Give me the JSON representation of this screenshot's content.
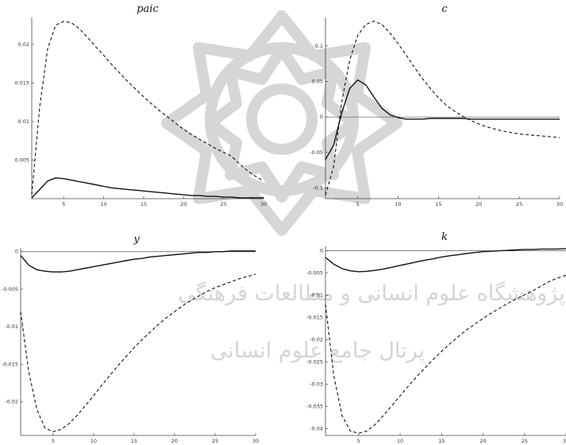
{
  "watermark": {
    "line1": "پژوهشگاه علوم انسانی و مطالعات فرهنگی",
    "line2": "پرتال جامع علوم انسانی"
  },
  "chart_data": [
    {
      "type": "line",
      "title": "paic",
      "xlim": [
        1,
        30
      ],
      "ylim": [
        0,
        0.0235
      ],
      "xticks": [
        5,
        10,
        15,
        20,
        25,
        30
      ],
      "yticks": [
        0.005,
        0.01,
        0.015,
        0.02
      ],
      "ytick_labels": [
        "0.005",
        "0.01",
        "0.015",
        "0.02"
      ],
      "zero_line": false,
      "x": [
        1,
        2,
        3,
        4,
        5,
        6,
        7,
        8,
        9,
        10,
        11,
        12,
        13,
        14,
        15,
        16,
        17,
        18,
        19,
        20,
        21,
        22,
        23,
        24,
        25,
        26,
        27,
        28,
        29,
        30
      ],
      "series": [
        {
          "style": "solid",
          "values": [
            0.0001,
            0.0012,
            0.0023,
            0.0027,
            0.0026,
            0.0024,
            0.0022,
            0.002,
            0.0018,
            0.0016,
            0.0014,
            0.0013,
            0.0012,
            0.0011,
            0.001,
            0.0009,
            0.0008,
            0.0007,
            0.0006,
            0.0005,
            0.0004,
            0.0004,
            0.0003,
            0.0003,
            0.0002,
            0.0002,
            0.0001,
            0.0001,
            0.0001,
            0.0001
          ]
        },
        {
          "style": "dashed",
          "values": [
            0.0005,
            0.012,
            0.0195,
            0.0225,
            0.023,
            0.0228,
            0.022,
            0.0209,
            0.0197,
            0.0186,
            0.0174,
            0.0163,
            0.0152,
            0.0142,
            0.0132,
            0.0123,
            0.0114,
            0.0106,
            0.0098,
            0.009,
            0.0083,
            0.0077,
            0.0071,
            0.0065,
            0.006,
            0.0055,
            0.0045,
            0.0036,
            0.0029,
            0.0023
          ]
        }
      ]
    },
    {
      "type": "line",
      "title": "c",
      "xlim": [
        1,
        30
      ],
      "ylim": [
        -0.115,
        0.14
      ],
      "xticks": [
        5,
        10,
        15,
        20,
        25,
        30
      ],
      "yticks": [
        -0.1,
        -0.05,
        0,
        0.05,
        0.1
      ],
      "ytick_labels": [
        "-0.1",
        "-0.05",
        "0",
        "0.05",
        "0.1"
      ],
      "zero_line": true,
      "x": [
        1,
        2,
        3,
        4,
        5,
        6,
        7,
        8,
        9,
        10,
        11,
        12,
        13,
        14,
        15,
        16,
        17,
        18,
        19,
        20,
        21,
        22,
        23,
        24,
        25,
        26,
        27,
        28,
        29,
        30
      ],
      "series": [
        {
          "style": "solid",
          "values": [
            -0.06,
            -0.04,
            0.005,
            0.04,
            0.052,
            0.045,
            0.028,
            0.012,
            0.003,
            -0.001,
            -0.003,
            -0.003,
            -0.003,
            -0.002,
            -0.002,
            -0.002,
            -0.002,
            -0.002,
            -0.003,
            -0.003,
            -0.003,
            -0.003,
            -0.003,
            -0.003,
            -0.003,
            -0.003,
            -0.003,
            -0.003,
            -0.003,
            -0.003
          ]
        },
        {
          "style": "dashed",
          "values": [
            -0.11,
            -0.07,
            0.02,
            0.08,
            0.115,
            0.13,
            0.135,
            0.13,
            0.118,
            0.103,
            0.087,
            0.07,
            0.054,
            0.04,
            0.027,
            0.016,
            0.008,
            0.001,
            -0.005,
            -0.01,
            -0.014,
            -0.017,
            -0.02,
            -0.022,
            -0.024,
            -0.025,
            -0.026,
            -0.027,
            -0.028,
            -0.029
          ]
        }
      ]
    },
    {
      "type": "line",
      "title": "y",
      "xlim": [
        1,
        30
      ],
      "ylim": [
        -0.0245,
        0.0005
      ],
      "xticks": [
        5,
        10,
        15,
        20,
        25,
        30
      ],
      "yticks": [
        -0.02,
        -0.015,
        -0.01,
        -0.005,
        0
      ],
      "ytick_labels": [
        "-0.02",
        "-0.015",
        "-0.01",
        "-0.005",
        "0"
      ],
      "zero_line": true,
      "x": [
        1,
        2,
        3,
        4,
        5,
        6,
        7,
        8,
        9,
        10,
        11,
        12,
        13,
        14,
        15,
        16,
        17,
        18,
        19,
        20,
        21,
        22,
        23,
        24,
        25,
        26,
        27,
        28,
        29,
        30
      ],
      "series": [
        {
          "style": "solid",
          "values": [
            -0.0005,
            -0.0018,
            -0.0024,
            -0.0026,
            -0.0027,
            -0.0027,
            -0.0026,
            -0.0024,
            -0.0022,
            -0.002,
            -0.0018,
            -0.0016,
            -0.0014,
            -0.0012,
            -0.001,
            -0.0009,
            -0.0007,
            -0.0006,
            -0.0005,
            -0.0004,
            -0.0003,
            -0.0002,
            -0.0001,
            -0.0001,
            0.0,
            0.0,
            0.0001,
            0.0001,
            0.0001,
            0.0001
          ]
        },
        {
          "style": "dashed",
          "values": [
            -0.008,
            -0.016,
            -0.021,
            -0.0235,
            -0.024,
            -0.0237,
            -0.0229,
            -0.0218,
            -0.0205,
            -0.0192,
            -0.0178,
            -0.0165,
            -0.0152,
            -0.014,
            -0.0128,
            -0.0117,
            -0.0107,
            -0.0097,
            -0.0088,
            -0.008,
            -0.0072,
            -0.0065,
            -0.0059,
            -0.0053,
            -0.0048,
            -0.0044,
            -0.004,
            -0.0036,
            -0.0033,
            -0.003
          ]
        }
      ]
    },
    {
      "type": "line",
      "title": "k",
      "xlim": [
        1,
        30
      ],
      "ylim": [
        -0.0415,
        0.001
      ],
      "xticks": [
        5,
        10,
        15,
        20,
        25,
        30
      ],
      "yticks": [
        -0.04,
        -0.035,
        -0.03,
        -0.025,
        -0.02,
        -0.015,
        -0.01,
        -0.005,
        0
      ],
      "ytick_labels": [
        "-0.04",
        "-0.035",
        "-0.03",
        "-0.025",
        "-0.02",
        "-0.015",
        "-0.01",
        "-0.005",
        "0"
      ],
      "zero_line": true,
      "x": [
        1,
        2,
        3,
        4,
        5,
        6,
        7,
        8,
        9,
        10,
        11,
        12,
        13,
        14,
        15,
        16,
        17,
        18,
        19,
        20,
        21,
        22,
        23,
        24,
        25,
        26,
        27,
        28,
        29,
        30
      ],
      "series": [
        {
          "style": "solid",
          "values": [
            -0.0015,
            -0.003,
            -0.004,
            -0.0045,
            -0.0047,
            -0.0046,
            -0.0044,
            -0.0041,
            -0.0037,
            -0.0033,
            -0.0029,
            -0.0025,
            -0.0021,
            -0.0018,
            -0.0014,
            -0.0011,
            -0.0009,
            -0.0006,
            -0.0004,
            -0.0002,
            -0.0001,
            0.0,
            0.0001,
            0.0002,
            0.0003,
            0.0003,
            0.0004,
            0.0004,
            0.0004,
            0.0005
          ]
        },
        {
          "style": "dashed",
          "values": [
            -0.012,
            -0.028,
            -0.037,
            -0.0405,
            -0.041,
            -0.0405,
            -0.039,
            -0.037,
            -0.0348,
            -0.0326,
            -0.0304,
            -0.0283,
            -0.0263,
            -0.0244,
            -0.0226,
            -0.0209,
            -0.0193,
            -0.0178,
            -0.0165,
            -0.0152,
            -0.014,
            -0.0129,
            -0.0118,
            -0.0108,
            -0.0099,
            -0.009,
            -0.0079,
            -0.0069,
            -0.0061,
            -0.0055
          ]
        }
      ]
    }
  ]
}
